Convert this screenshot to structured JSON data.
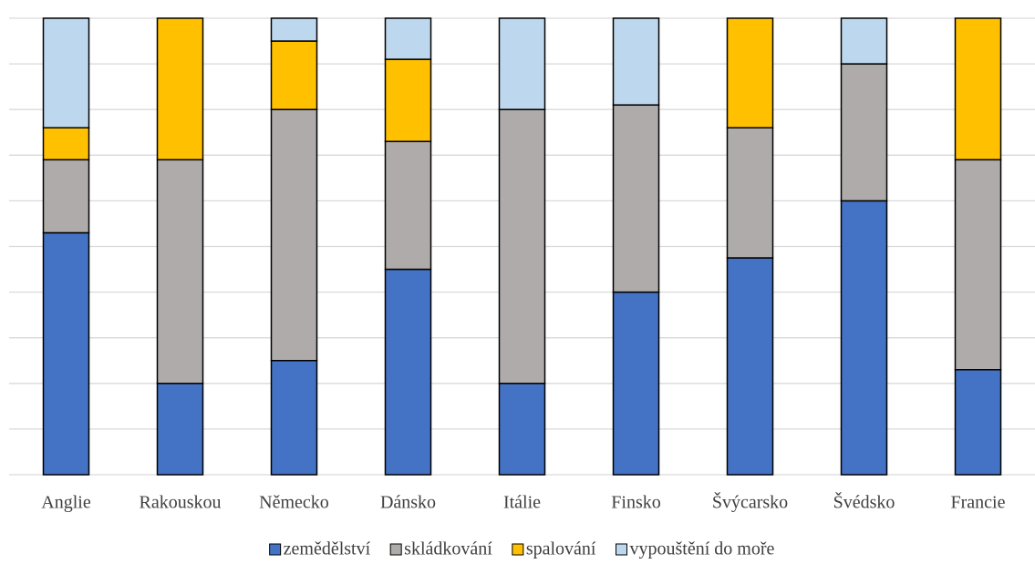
{
  "chart_data": {
    "type": "stacked_bar",
    "categories": [
      "Anglie",
      "Rakouskou",
      "Německo",
      "Dánsko",
      "Itálie",
      "Finsko",
      "Švýcarsko",
      "Švédsko",
      "Francie"
    ],
    "series": [
      {
        "name": "zemědělství",
        "color": "#4472c4",
        "values": [
          53,
          20,
          25,
          45,
          20,
          40,
          47.5,
          60,
          23
        ]
      },
      {
        "name": "skládkování",
        "color": "#afabab",
        "values": [
          16,
          49,
          55,
          28,
          60,
          41,
          28.5,
          30,
          46
        ]
      },
      {
        "name": "spalování",
        "color": "#ffc000",
        "values": [
          7,
          31,
          15,
          18,
          0,
          0,
          24,
          0,
          31
        ]
      },
      {
        "name": "vypouštění do moře",
        "color": "#bdd7ee",
        "values": [
          24,
          0,
          5,
          9,
          20,
          19,
          0,
          10,
          0
        ]
      }
    ],
    "ylim": [
      0,
      100
    ],
    "yticks": [
      0,
      10,
      20,
      30,
      40,
      50,
      60,
      70,
      80,
      90,
      100
    ],
    "grid": true,
    "legend": "bottom"
  }
}
